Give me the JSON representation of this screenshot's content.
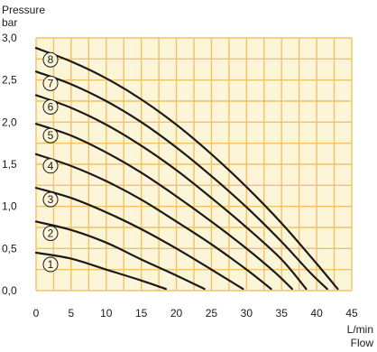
{
  "chart_data": {
    "type": "line",
    "ylabel": [
      "Pressure",
      "bar"
    ],
    "xlabel": [
      "L/min",
      "Flow"
    ],
    "xlim": [
      0,
      45
    ],
    "ylim": [
      0,
      3.0
    ],
    "x_ticks": [
      0,
      5,
      10,
      15,
      20,
      25,
      30,
      35,
      40,
      45
    ],
    "x_tick_labels": [
      "0",
      "5",
      "10",
      "15",
      "20",
      "25",
      "30",
      "35",
      "40",
      "45"
    ],
    "y_ticks": [
      0,
      0.5,
      1.0,
      1.5,
      2.0,
      2.5,
      3.0
    ],
    "y_tick_labels": [
      "0,0",
      "0,5",
      "1,0",
      "1,5",
      "2,0",
      "2,5",
      "3,0"
    ],
    "grid": true,
    "background_color": "#fdf5d8",
    "grid_color": "#f2c267",
    "line_color": "#1a1a1a",
    "series": [
      {
        "label": "1",
        "points": [
          [
            0,
            0.45
          ],
          [
            5,
            0.38
          ],
          [
            10,
            0.25
          ],
          [
            15,
            0.12
          ],
          [
            18.5,
            0.02
          ]
        ]
      },
      {
        "label": "2",
        "points": [
          [
            0,
            0.82
          ],
          [
            5,
            0.72
          ],
          [
            10,
            0.57
          ],
          [
            15,
            0.37
          ],
          [
            20,
            0.18
          ],
          [
            24,
            0.02
          ]
        ]
      },
      {
        "label": "3",
        "points": [
          [
            0,
            1.22
          ],
          [
            5,
            1.1
          ],
          [
            10,
            0.93
          ],
          [
            15,
            0.73
          ],
          [
            20,
            0.5
          ],
          [
            25,
            0.25
          ],
          [
            29.5,
            0.02
          ]
        ]
      },
      {
        "label": "4",
        "points": [
          [
            0,
            1.62
          ],
          [
            5,
            1.48
          ],
          [
            10,
            1.3
          ],
          [
            15,
            1.08
          ],
          [
            20,
            0.82
          ],
          [
            25,
            0.55
          ],
          [
            30,
            0.25
          ],
          [
            33.5,
            0.02
          ]
        ]
      },
      {
        "label": "5",
        "points": [
          [
            0,
            1.98
          ],
          [
            5,
            1.84
          ],
          [
            10,
            1.64
          ],
          [
            15,
            1.4
          ],
          [
            20,
            1.12
          ],
          [
            25,
            0.82
          ],
          [
            30,
            0.5
          ],
          [
            34,
            0.22
          ],
          [
            36.5,
            0.02
          ]
        ]
      },
      {
        "label": "6",
        "points": [
          [
            0,
            2.32
          ],
          [
            5,
            2.17
          ],
          [
            10,
            1.97
          ],
          [
            15,
            1.72
          ],
          [
            20,
            1.43
          ],
          [
            25,
            1.1
          ],
          [
            30,
            0.75
          ],
          [
            35,
            0.37
          ],
          [
            38.5,
            0.02
          ]
        ]
      },
      {
        "label": "7",
        "points": [
          [
            0,
            2.6
          ],
          [
            5,
            2.45
          ],
          [
            10,
            2.25
          ],
          [
            15,
            2.0
          ],
          [
            20,
            1.7
          ],
          [
            25,
            1.36
          ],
          [
            30,
            0.99
          ],
          [
            35,
            0.58
          ],
          [
            39,
            0.22
          ],
          [
            41.5,
            0.02
          ]
        ]
      },
      {
        "label": "8",
        "points": [
          [
            0,
            2.88
          ],
          [
            5,
            2.72
          ],
          [
            10,
            2.52
          ],
          [
            15,
            2.27
          ],
          [
            20,
            1.97
          ],
          [
            25,
            1.62
          ],
          [
            30,
            1.23
          ],
          [
            35,
            0.8
          ],
          [
            40,
            0.32
          ],
          [
            43,
            0.02
          ]
        ]
      }
    ]
  }
}
